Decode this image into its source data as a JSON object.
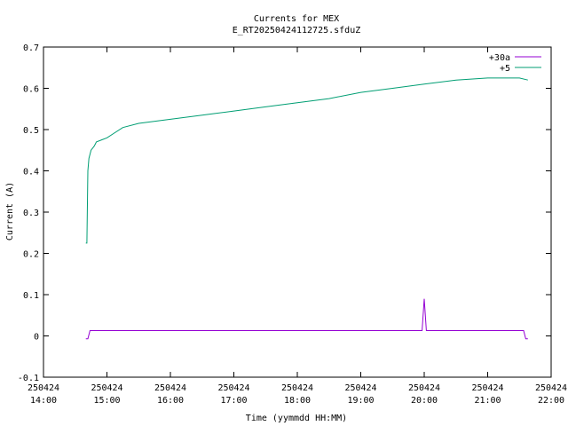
{
  "chart_data": {
    "type": "line",
    "title": "Currents for MEX",
    "subtitle": "E_RT20250424112725.sfduZ",
    "xlabel": "Time (yymmdd HH:MM)",
    "ylabel": "Current (A)",
    "xlim": [
      "2025-04-24 14:00",
      "2025-04-24 22:00"
    ],
    "ylim": [
      -0.1,
      0.7
    ],
    "grid": false,
    "legend_position": "top-right",
    "x_ticks": [
      {
        "date": "250424",
        "time": "14:00"
      },
      {
        "date": "250424",
        "time": "15:00"
      },
      {
        "date": "250424",
        "time": "16:00"
      },
      {
        "date": "250424",
        "time": "17:00"
      },
      {
        "date": "250424",
        "time": "18:00"
      },
      {
        "date": "250424",
        "time": "19:00"
      },
      {
        "date": "250424",
        "time": "20:00"
      },
      {
        "date": "250424",
        "time": "21:00"
      },
      {
        "date": "250424",
        "time": "22:00"
      }
    ],
    "y_ticks": [
      "-0.1",
      "0",
      "0.1",
      "0.2",
      "0.3",
      "0.4",
      "0.5",
      "0.6",
      "0.7"
    ],
    "series": [
      {
        "name": "+30a",
        "color": "#9400d3",
        "x": [
          "14:40",
          "14:42",
          "14:44",
          "14:46",
          "15:00",
          "15:30",
          "16:00",
          "16:30",
          "17:00",
          "17:30",
          "18:00",
          "18:30",
          "19:00",
          "19:30",
          "19:58",
          "20:00",
          "20:02",
          "20:30",
          "21:00",
          "21:30",
          "21:34",
          "21:36",
          "21:38"
        ],
        "y": [
          -0.007,
          -0.007,
          0.013,
          0.013,
          0.013,
          0.013,
          0.013,
          0.013,
          0.013,
          0.013,
          0.013,
          0.013,
          0.013,
          0.013,
          0.013,
          0.09,
          0.013,
          0.013,
          0.013,
          0.013,
          0.013,
          -0.007,
          -0.007
        ]
      },
      {
        "name": "+5",
        "color": "#009e73",
        "x": [
          "14:40",
          "14:41",
          "14:42",
          "14:43",
          "14:45",
          "14:48",
          "14:50",
          "14:55",
          "15:00",
          "15:15",
          "15:30",
          "16:00",
          "16:30",
          "17:00",
          "17:30",
          "18:00",
          "18:30",
          "19:00",
          "19:30",
          "20:00",
          "20:30",
          "21:00",
          "21:30",
          "21:38"
        ],
        "y": [
          0.225,
          0.225,
          0.4,
          0.43,
          0.45,
          0.46,
          0.47,
          0.475,
          0.48,
          0.505,
          0.515,
          0.525,
          0.535,
          0.545,
          0.555,
          0.565,
          0.575,
          0.59,
          0.6,
          0.61,
          0.62,
          0.625,
          0.625,
          0.62
        ]
      }
    ]
  }
}
